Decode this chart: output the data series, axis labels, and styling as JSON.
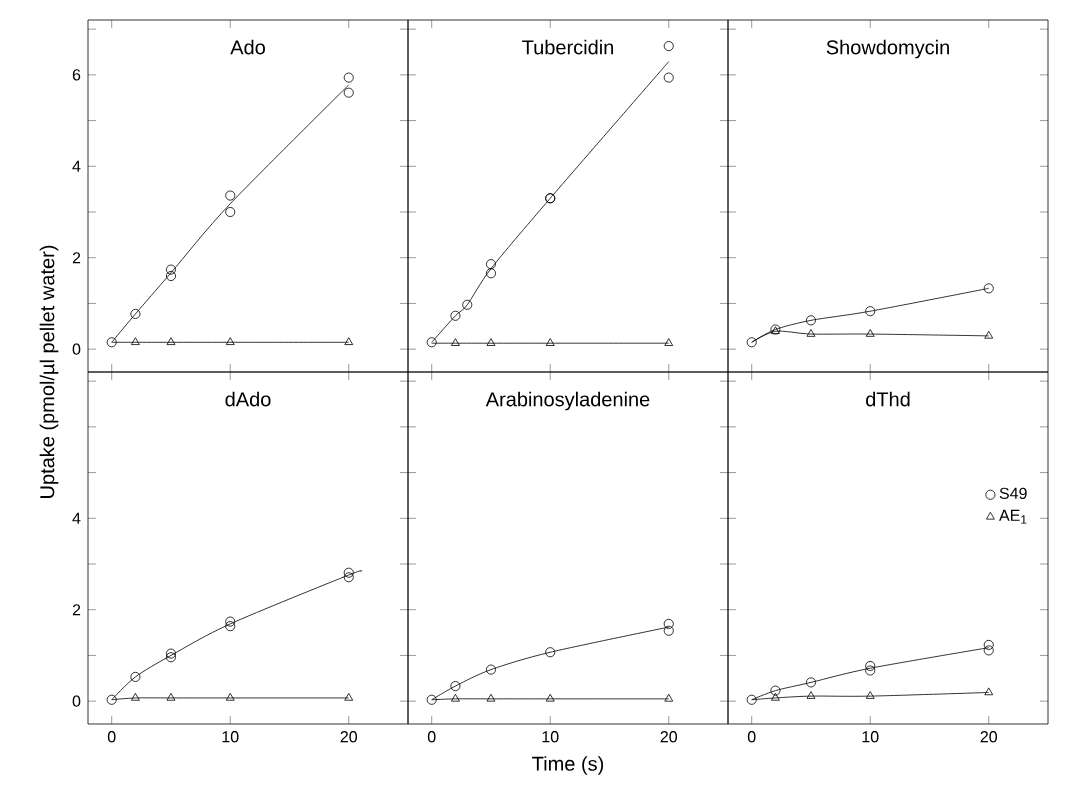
{
  "chart_data": [
    {
      "type": "scatter",
      "title": "Ado",
      "ylabel": "Uptake (pmol/µl pellet water)",
      "xlim": [
        -2,
        25
      ],
      "ylim": [
        -0.5,
        7.2
      ],
      "xticks": [
        0,
        10,
        20
      ],
      "yticks": [
        0,
        {
          "value": 1,
          "label": null
        },
        2,
        {
          "value": 3,
          "label": null
        },
        4,
        {
          "value": 5,
          "label": null
        },
        6,
        {
          "value": 7,
          "label": null
        }
      ],
      "tick_labels": "y",
      "series": [
        {
          "marker": "circle",
          "color": "#000000",
          "x": [
            0,
            2,
            5,
            5,
            10,
            10,
            20,
            20
          ],
          "values": [
            0.15,
            0.77,
            1.74,
            1.6,
            3.36,
            3.0,
            5.94,
            5.61
          ]
        },
        {
          "type": "line",
          "color": "#000000",
          "x": [
            0,
            2,
            5,
            10,
            20
          ],
          "values": [
            0.15,
            0.77,
            1.67,
            3.18,
            5.78
          ]
        },
        {
          "marker": "triangle",
          "color": "#000000",
          "x": [
            2,
            5,
            10,
            20
          ],
          "values": [
            0.15,
            0.15,
            0.15,
            0.15
          ]
        },
        {
          "type": "line",
          "color": "#000000",
          "x": [
            0,
            2,
            5,
            10,
            20
          ],
          "values": [
            0.15,
            0.15,
            0.15,
            0.15,
            0.15
          ]
        }
      ]
    },
    {
      "type": "scatter",
      "title": "Tubercidin",
      "xlim": [
        -2,
        25
      ],
      "ylim": [
        -0.5,
        7.2
      ],
      "xticks": [
        0,
        10,
        20
      ],
      "yticks": [
        0,
        1,
        2,
        3,
        4,
        5,
        6,
        7
      ],
      "tick_labels": false,
      "series": [
        {
          "marker": "circle",
          "color": "#000000",
          "x": [
            0,
            2,
            3,
            5,
            5,
            10,
            10,
            20,
            20
          ],
          "values": [
            0.15,
            0.73,
            0.97,
            1.86,
            1.66,
            3.3,
            3.3,
            6.63,
            5.94
          ]
        },
        {
          "type": "line",
          "color": "#000000",
          "x": [
            0,
            2,
            3,
            5,
            10,
            20
          ],
          "values": [
            0.15,
            0.73,
            0.97,
            1.76,
            3.3,
            6.29
          ]
        },
        {
          "marker": "triangle",
          "color": "#000000",
          "x": [
            2,
            5,
            10,
            20
          ],
          "values": [
            0.13,
            0.13,
            0.13,
            0.13
          ]
        },
        {
          "type": "line",
          "color": "#000000",
          "x": [
            0,
            2,
            5,
            10,
            20
          ],
          "values": [
            0.13,
            0.13,
            0.13,
            0.13,
            0.13
          ]
        }
      ]
    },
    {
      "type": "scatter",
      "title": "Showdomycin",
      "xlim": [
        -2,
        25
      ],
      "ylim": [
        -0.5,
        7.2
      ],
      "xticks": [
        0,
        10,
        20
      ],
      "yticks": [
        0,
        1,
        2,
        3,
        4,
        5,
        6,
        7
      ],
      "tick_labels": false,
      "series": [
        {
          "marker": "circle",
          "color": "#000000",
          "x": [
            0,
            2,
            5,
            10,
            20
          ],
          "values": [
            0.15,
            0.43,
            0.63,
            0.83,
            1.33
          ]
        },
        {
          "type": "line",
          "color": "#000000",
          "x": [
            0,
            2,
            5,
            10,
            20
          ],
          "values": [
            0.15,
            0.43,
            0.63,
            0.83,
            1.33
          ]
        },
        {
          "marker": "triangle",
          "color": "#000000",
          "x": [
            2,
            5,
            10,
            20
          ],
          "values": [
            0.39,
            0.33,
            0.33,
            0.29
          ]
        },
        {
          "type": "line",
          "color": "#000000",
          "x": [
            0,
            2,
            5,
            10,
            20
          ],
          "values": [
            0.15,
            0.39,
            0.33,
            0.33,
            0.29
          ]
        }
      ]
    },
    {
      "type": "scatter",
      "title": "dAdo",
      "xlim": [
        -2,
        25
      ],
      "ylim": [
        -0.5,
        7.2
      ],
      "xticks": [
        0,
        10,
        20
      ],
      "yticks": [
        0,
        {
          "value": 1,
          "label": null
        },
        2,
        {
          "value": 3,
          "label": null
        },
        4,
        {
          "value": 5,
          "label": null
        },
        {
          "value": 6,
          "label": null
        },
        {
          "value": 7,
          "label": null
        }
      ],
      "series": [
        {
          "marker": "circle",
          "color": "#000000",
          "x": [
            0,
            2,
            5,
            5,
            10,
            10,
            20,
            20
          ],
          "values": [
            0.03,
            0.53,
            1.04,
            0.96,
            1.74,
            1.64,
            2.81,
            2.71
          ]
        },
        {
          "type": "line",
          "color": "#000000",
          "x": [
            0,
            2,
            5,
            10,
            20,
            21
          ],
          "values": [
            0.03,
            0.53,
            1.0,
            1.69,
            2.76,
            2.83
          ]
        },
        {
          "marker": "triangle",
          "color": "#000000",
          "x": [
            2,
            5,
            10,
            20
          ],
          "values": [
            0.07,
            0.07,
            0.07,
            0.07
          ]
        },
        {
          "type": "line",
          "color": "#000000",
          "x": [
            0,
            2,
            5,
            10,
            20
          ],
          "values": [
            0.03,
            0.07,
            0.07,
            0.07,
            0.07
          ]
        }
      ]
    },
    {
      "type": "scatter",
      "title": "Arabinosyladenine",
      "xlabel": "Time (s)",
      "xlim": [
        -2,
        25
      ],
      "ylim": [
        -0.5,
        7.2
      ],
      "xticks": [
        0,
        10,
        20
      ],
      "yticks": [
        0,
        1,
        2,
        3,
        4,
        5,
        6,
        7
      ],
      "tick_labels": "x",
      "series": [
        {
          "marker": "circle",
          "color": "#000000",
          "x": [
            0,
            2,
            5,
            10,
            20,
            20
          ],
          "values": [
            0.03,
            0.33,
            0.69,
            1.07,
            1.69,
            1.54
          ]
        },
        {
          "type": "line",
          "color": "#000000",
          "x": [
            0,
            2,
            5,
            10,
            20
          ],
          "values": [
            0.03,
            0.33,
            0.69,
            1.07,
            1.62
          ]
        },
        {
          "marker": "triangle",
          "color": "#000000",
          "x": [
            2,
            5,
            10,
            20
          ],
          "values": [
            0.05,
            0.05,
            0.05,
            0.05
          ]
        },
        {
          "type": "line",
          "color": "#000000",
          "x": [
            0,
            2,
            5,
            10,
            20
          ],
          "values": [
            0.03,
            0.05,
            0.05,
            0.05,
            0.05
          ]
        }
      ]
    },
    {
      "type": "scatter",
      "title": "dThd",
      "xlim": [
        -2,
        25
      ],
      "ylim": [
        -0.5,
        7.2
      ],
      "xticks": [
        0,
        10,
        20
      ],
      "yticks": [
        0,
        1,
        2,
        3,
        4,
        5,
        6,
        7
      ],
      "tick_labels": "x",
      "legend": "right",
      "series": [
        {
          "name": "S49",
          "marker": "circle",
          "color": "#000000",
          "x": [
            0,
            2,
            5,
            10,
            10,
            20,
            20
          ],
          "values": [
            0.03,
            0.23,
            0.41,
            0.77,
            0.67,
            1.23,
            1.11
          ]
        },
        {
          "type": "line",
          "color": "#000000",
          "x": [
            0,
            2,
            5,
            10,
            20
          ],
          "values": [
            0.03,
            0.23,
            0.41,
            0.72,
            1.17
          ]
        },
        {
          "name": "AE$_{1}$",
          "marker": "triangle",
          "color": "#000000",
          "x": [
            2,
            5,
            10,
            20
          ],
          "values": [
            0.07,
            0.11,
            0.11,
            0.19
          ]
        },
        {
          "type": "line",
          "color": "#000000",
          "x": [
            0,
            2,
            5,
            10,
            20
          ],
          "values": [
            0.03,
            0.07,
            0.11,
            0.11,
            0.19
          ]
        }
      ]
    }
  ]
}
